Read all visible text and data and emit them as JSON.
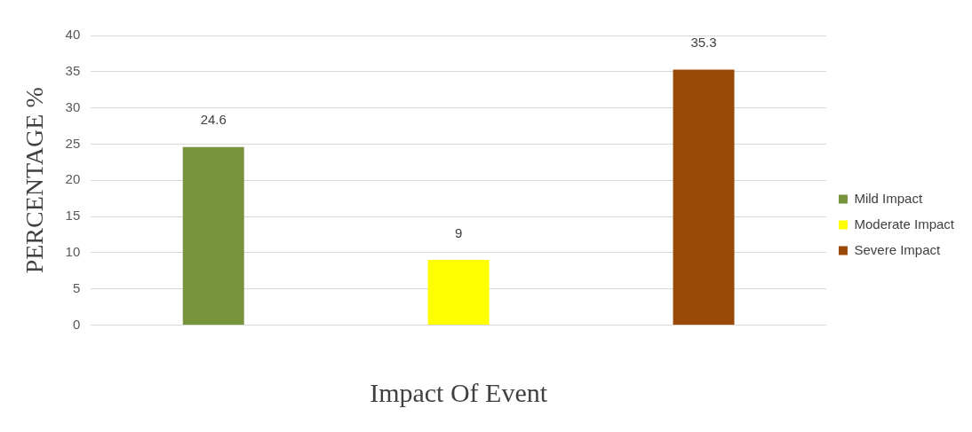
{
  "chart_data": {
    "type": "bar",
    "xlabel": "Impact Of Event",
    "ylabel": "PERCENTAGE %",
    "categories": [
      null,
      null,
      null
    ],
    "series": [
      {
        "name": "Mild Impact",
        "color": "#77933c",
        "values": [
          24.6,
          null,
          null
        ]
      },
      {
        "name": "Moderate Impact",
        "color": "#ffff00",
        "values": [
          null,
          9,
          null
        ]
      },
      {
        "name": "Severe Impact",
        "color": "#984807",
        "values": [
          null,
          null,
          35.3
        ]
      }
    ],
    "ylim": [
      0,
      40
    ],
    "yticks": [
      0,
      5,
      10,
      15,
      20,
      25,
      30,
      35,
      40
    ],
    "grid": "y",
    "legend": "right",
    "data_labels": true
  }
}
